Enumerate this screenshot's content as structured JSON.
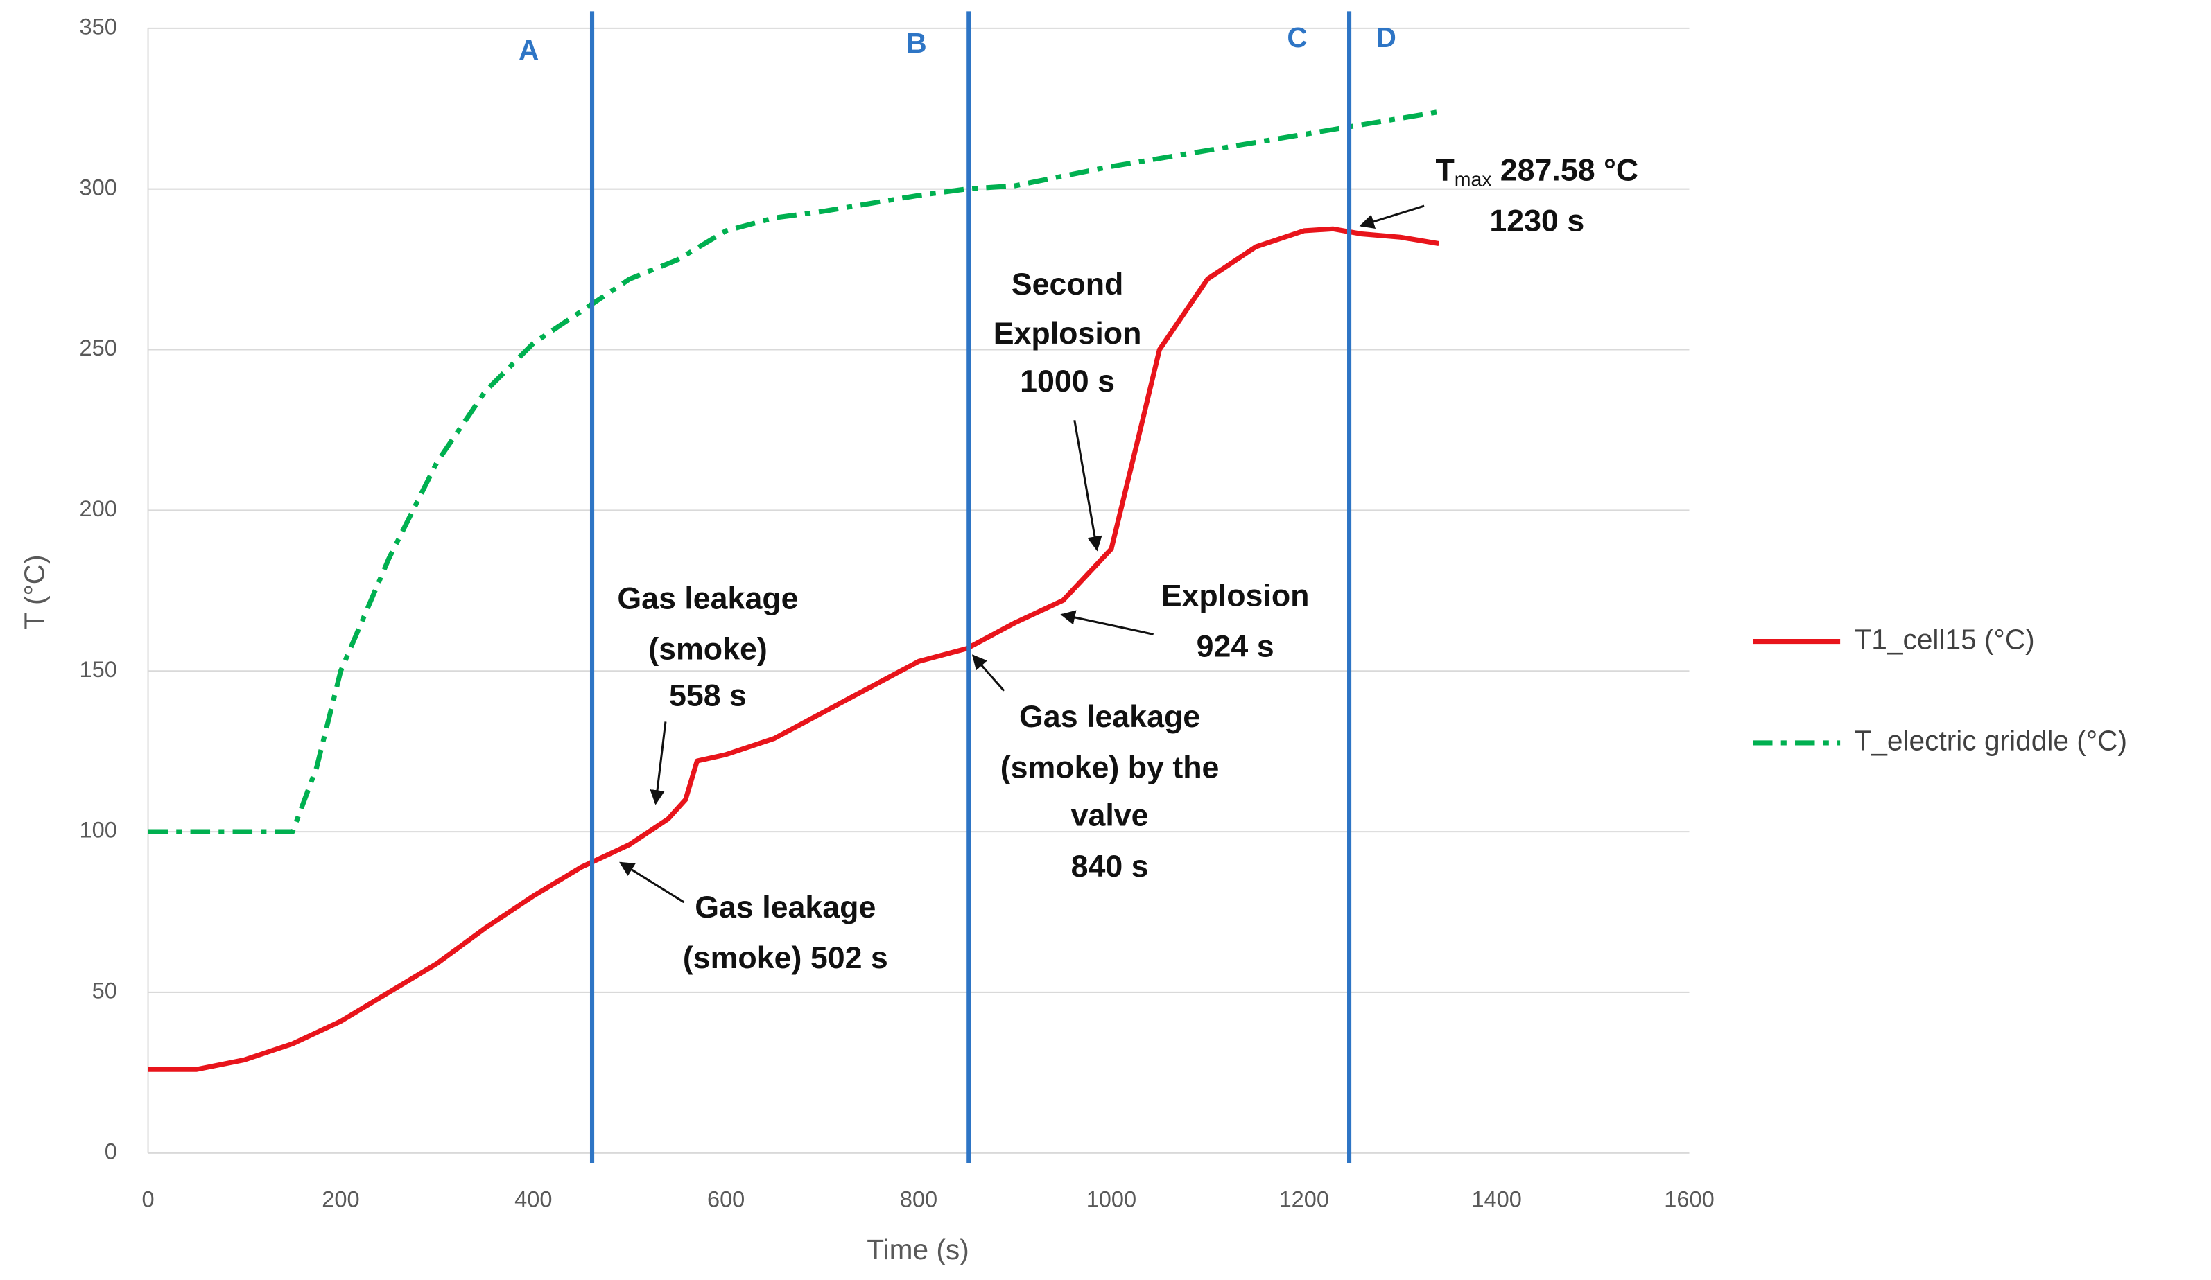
{
  "chart_data": {
    "type": "line",
    "xlabel": "Time (s)",
    "ylabel": "T (°C)",
    "xlim": [
      0,
      1600
    ],
    "xticks": [
      0,
      200,
      400,
      600,
      800,
      1000,
      1200,
      1400,
      1600
    ],
    "ylim": [
      0,
      350
    ],
    "yticks": [
      0,
      50,
      100,
      150,
      200,
      250,
      300,
      350
    ],
    "grid": true,
    "legend": "right",
    "series": [
      {
        "name": "T1_cell15 (°C)",
        "color": "#e8141b",
        "style": "solid",
        "x": [
          0,
          50,
          100,
          150,
          200,
          250,
          300,
          350,
          400,
          450,
          500,
          540,
          558,
          570,
          600,
          650,
          700,
          750,
          800,
          850,
          900,
          950,
          1000,
          1030,
          1050,
          1100,
          1150,
          1200,
          1230,
          1260,
          1300,
          1340
        ],
        "values": [
          26,
          26,
          29,
          34,
          41,
          50,
          59,
          70,
          80,
          89,
          96,
          104,
          110,
          122,
          124,
          129,
          137,
          145,
          153,
          157,
          165,
          172,
          188,
          225,
          250,
          272,
          282,
          287,
          287.58,
          286,
          285,
          283
        ]
      },
      {
        "name": "T_electric griddle (°C)",
        "color": "#00b050",
        "style": "dashdot",
        "x": [
          0,
          150,
          175,
          200,
          250,
          300,
          350,
          400,
          450,
          500,
          550,
          600,
          650,
          700,
          800,
          850,
          900,
          950,
          1000,
          1100,
          1200,
          1340
        ],
        "values": [
          100,
          100,
          120,
          150,
          185,
          215,
          237,
          252,
          262,
          272,
          278,
          287,
          291,
          293,
          298,
          300,
          301,
          304,
          307,
          312,
          317,
          324
        ]
      }
    ],
    "vlines": {
      "color": "#2e75c5",
      "values": [
        461,
        852,
        1247
      ]
    },
    "zones": [
      "A",
      "B",
      "C",
      "D"
    ],
    "annotations": [
      {
        "lines": [
          "Gas leakage",
          "(smoke)",
          "558 s"
        ]
      },
      {
        "lines": [
          "Gas leakage",
          "(smoke) 502 s"
        ]
      },
      {
        "lines": [
          "Gas leakage",
          "(smoke) by the",
          "valve",
          "840 s"
        ]
      },
      {
        "lines": [
          "Second",
          "Explosion",
          "1000 s"
        ]
      },
      {
        "lines": [
          "Explosion",
          "924 s"
        ]
      },
      {
        "symbol": "T",
        "subscript": "max",
        "lines": [
          "287.58 °C",
          "1230 s"
        ]
      }
    ]
  }
}
